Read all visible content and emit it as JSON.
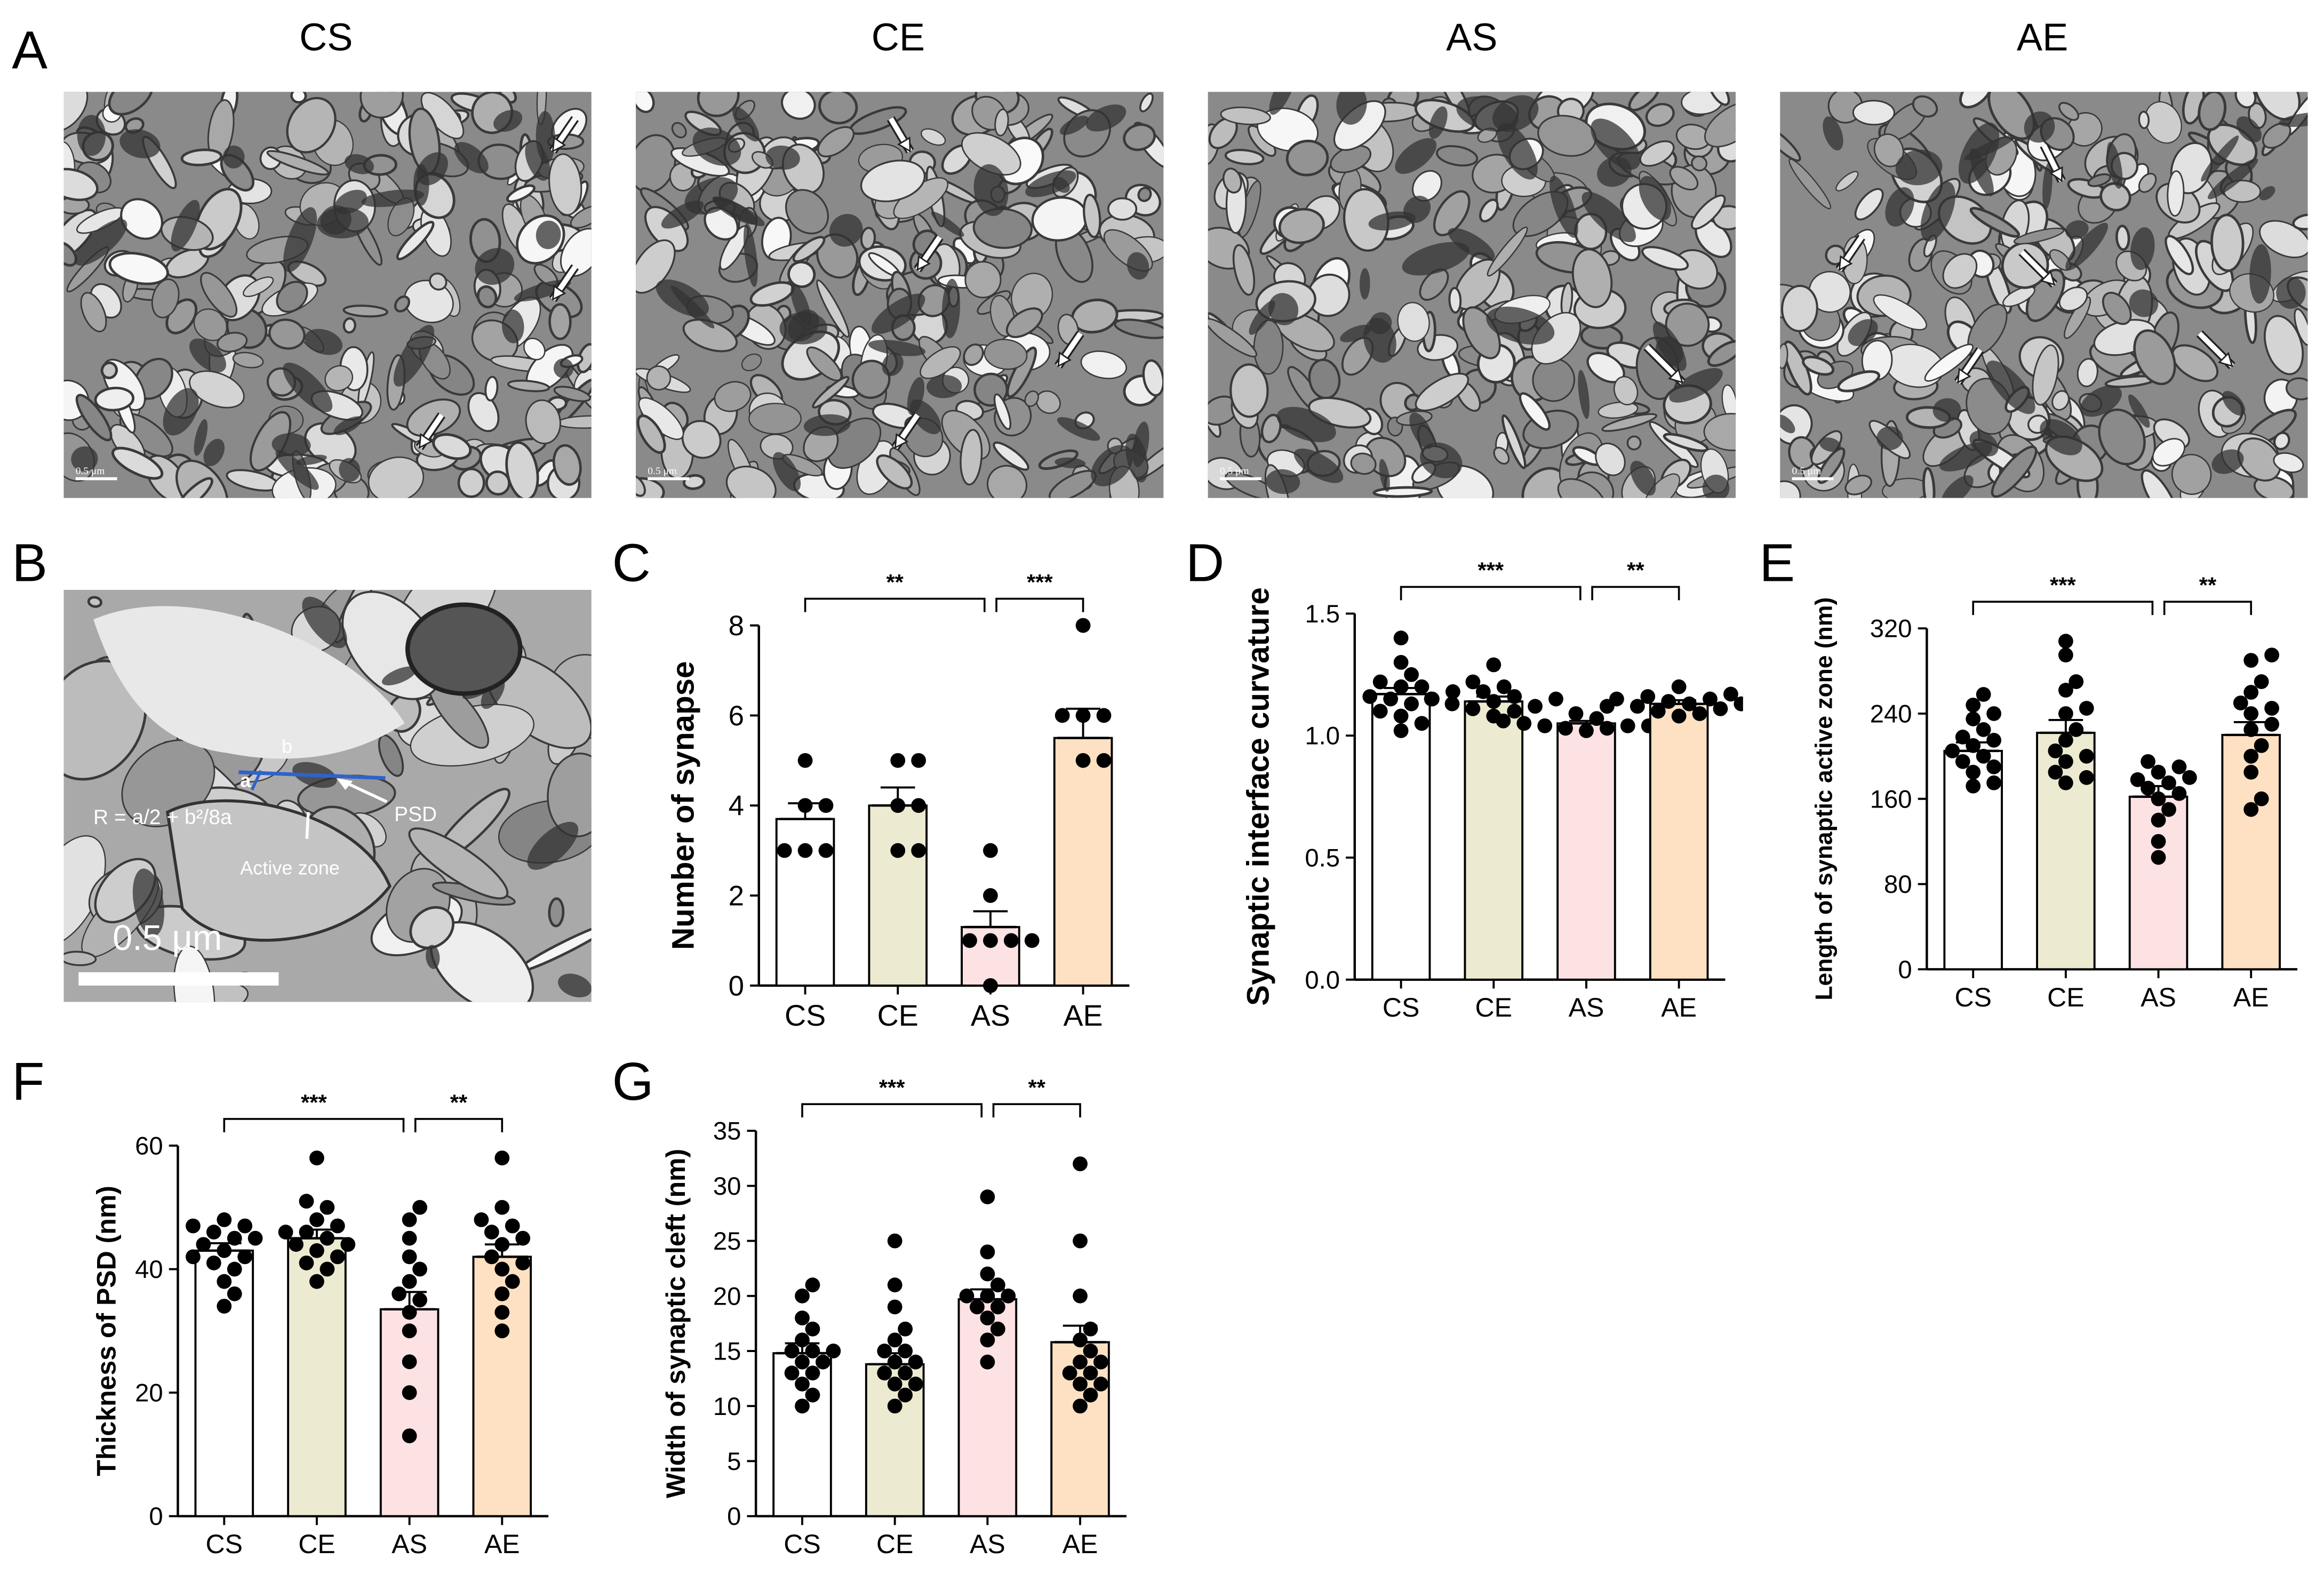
{
  "figure": {
    "panel_letters": {
      "A": "A",
      "B": "B",
      "C": "C",
      "D": "D",
      "E": "E",
      "F": "F",
      "G": "G"
    },
    "panel_a_headers": [
      "CS",
      "CE",
      "AS",
      "AE"
    ],
    "em_scale_label": "0.5 μm",
    "panel_b": {
      "label_a": "a",
      "label_b": "b",
      "formula": "R = a/2 + b²/8a",
      "psd": "PSD",
      "active_zone": "Active zone",
      "scale": "0.5 μm"
    },
    "colors": {
      "CS": "#ffffff",
      "CE": "#ecebd1",
      "AS": "#fde2e4",
      "AE": "#fde1c2",
      "dot": "#000000",
      "ann_blue": "#2f63c9"
    }
  },
  "chart_data": [
    {
      "panel": "C",
      "type": "bar",
      "ylabel": "Number of synapse",
      "categories": [
        "CS",
        "CE",
        "AS",
        "AE"
      ],
      "values": [
        3.7,
        4.0,
        1.3,
        5.5
      ],
      "errors": [
        0.35,
        0.4,
        0.35,
        0.65
      ],
      "points": [
        [
          3,
          3,
          4,
          5,
          3,
          4
        ],
        [
          3,
          3,
          5,
          5,
          4,
          4
        ],
        [
          0,
          1,
          1,
          1,
          1,
          3,
          2
        ],
        [
          5,
          5,
          6,
          6,
          6,
          8
        ]
      ],
      "ylim": [
        0,
        8
      ],
      "yticks": [
        0,
        2,
        4,
        6,
        8
      ],
      "ytick_labels": [
        "0",
        "2",
        "4",
        "6",
        "8"
      ],
      "sig": [
        {
          "from": 0,
          "to": 2,
          "label": "**"
        },
        {
          "from": 2,
          "to": 3,
          "label": "***"
        }
      ]
    },
    {
      "panel": "D",
      "type": "bar",
      "ylabel": "Synaptic interface curvature",
      "categories": [
        "CS",
        "CE",
        "AS",
        "AE"
      ],
      "values": [
        1.17,
        1.14,
        1.05,
        1.13
      ],
      "errors": [
        0.025,
        0.02,
        0.01,
        0.015
      ],
      "points": [
        [
          1.4,
          1.3,
          1.25,
          1.22,
          1.2,
          1.18,
          1.16,
          1.15,
          1.13,
          1.1,
          1.08,
          1.05,
          1.02,
          1.2,
          1.15
        ],
        [
          1.29,
          1.22,
          1.2,
          1.18,
          1.15,
          1.14,
          1.12,
          1.1,
          1.08,
          1.13,
          1.16,
          1.11,
          1.15
        ],
        [
          1.12,
          1.09,
          1.07,
          1.06,
          1.05,
          1.04,
          1.03,
          1.02,
          1.05,
          1.04,
          1.06,
          1.03,
          1.04
        ],
        [
          1.2,
          1.17,
          1.16,
          1.15,
          1.13,
          1.12,
          1.1,
          1.09,
          1.08,
          1.14,
          1.11,
          1.15,
          1.13
        ]
      ],
      "ylim": [
        0,
        1.5
      ],
      "yticks": [
        0,
        0.5,
        1.0,
        1.5
      ],
      "ytick_labels": [
        "0.0",
        "0.5",
        "1.0",
        "1.5"
      ],
      "sig": [
        {
          "from": 0,
          "to": 2,
          "label": "***"
        },
        {
          "from": 2,
          "to": 3,
          "label": "**"
        }
      ]
    },
    {
      "panel": "E",
      "type": "bar",
      "ylabel": "Length of synaptic active zone (nm)",
      "categories": [
        "CS",
        "CE",
        "AS",
        "AE"
      ],
      "values": [
        205,
        222,
        162,
        220
      ],
      "errors": [
        8,
        12,
        10,
        12
      ],
      "points": [
        [
          258,
          248,
          235,
          225,
          215,
          210,
          205,
          200,
          195,
          190,
          185,
          175,
          172,
          240,
          218
        ],
        [
          308,
          295,
          270,
          262,
          240,
          225,
          215,
          205,
          200,
          195,
          180,
          175,
          185,
          245
        ],
        [
          195,
          190,
          185,
          180,
          178,
          175,
          170,
          160,
          150,
          140,
          120,
          105,
          165
        ],
        [
          295,
          290,
          270,
          260,
          250,
          240,
          225,
          210,
          200,
          185,
          160,
          150,
          230,
          245
        ]
      ],
      "ylim": [
        0,
        320
      ],
      "yticks": [
        0,
        80,
        160,
        240,
        320
      ],
      "ytick_labels": [
        "0",
        "80",
        "160",
        "240",
        "320"
      ],
      "sig": [
        {
          "from": 0,
          "to": 2,
          "label": "***"
        },
        {
          "from": 2,
          "to": 3,
          "label": "**"
        }
      ]
    },
    {
      "panel": "F",
      "type": "bar",
      "ylabel": "Thickness of PSD (nm)",
      "categories": [
        "CS",
        "CE",
        "AS",
        "AE"
      ],
      "values": [
        43,
        45,
        33.5,
        42
      ],
      "errors": [
        1.2,
        1.4,
        2.8,
        2
      ],
      "points": [
        [
          48,
          47,
          46,
          45,
          44,
          43,
          42,
          41,
          40,
          38,
          36,
          34,
          45,
          42,
          47
        ],
        [
          58,
          51,
          50,
          48,
          47,
          46,
          45,
          44,
          43,
          42,
          41,
          40,
          38,
          44,
          46
        ],
        [
          50,
          48,
          45,
          42,
          38,
          36,
          35,
          33,
          30,
          25,
          20,
          13,
          40
        ],
        [
          58,
          50,
          48,
          47,
          46,
          44,
          42,
          41,
          40,
          38,
          36,
          33,
          30,
          45
        ]
      ],
      "ylim": [
        0,
        60
      ],
      "yticks": [
        0,
        20,
        40,
        60
      ],
      "ytick_labels": [
        "0",
        "20",
        "40",
        "60"
      ],
      "sig": [
        {
          "from": 0,
          "to": 2,
          "label": "***"
        },
        {
          "from": 2,
          "to": 3,
          "label": "**"
        }
      ]
    },
    {
      "panel": "G",
      "type": "bar",
      "ylabel": "Width of synaptic cleft (nm)",
      "categories": [
        "CS",
        "CE",
        "AS",
        "AE"
      ],
      "values": [
        14.8,
        13.8,
        19.7,
        15.8
      ],
      "errors": [
        0.9,
        1.0,
        0.9,
        1.5
      ],
      "points": [
        [
          21,
          20,
          18,
          17,
          16,
          15,
          15,
          14,
          14,
          13,
          12,
          11,
          10,
          15,
          13
        ],
        [
          25,
          21,
          19,
          17,
          16,
          15,
          14,
          14,
          13,
          12,
          12,
          11,
          10,
          13,
          15
        ],
        [
          29,
          24,
          22,
          21,
          20,
          20,
          19,
          19,
          18,
          17,
          16,
          14,
          20
        ],
        [
          32,
          25,
          20,
          17,
          16,
          15,
          14,
          13,
          13,
          12,
          12,
          11,
          10,
          14
        ]
      ],
      "ylim": [
        0,
        35
      ],
      "yticks": [
        0,
        5,
        10,
        15,
        20,
        25,
        30,
        35
      ],
      "ytick_labels": [
        "0",
        "5",
        "10",
        "15",
        "20",
        "25",
        "30",
        "35"
      ],
      "sig": [
        {
          "from": 0,
          "to": 2,
          "label": "***"
        },
        {
          "from": 2,
          "to": 3,
          "label": "**"
        }
      ]
    }
  ]
}
